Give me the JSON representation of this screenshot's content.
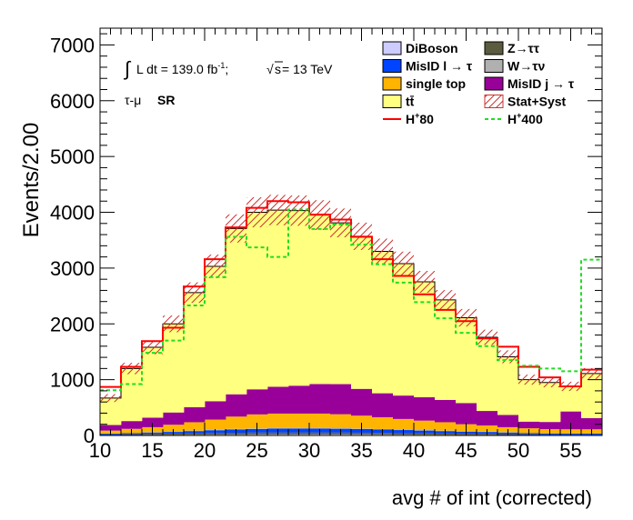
{
  "chart_data": {
    "type": "stacked-histogram",
    "xlabel": "avg # of int (corrected)",
    "ylabel": "Events/2.00",
    "xlim": [
      10,
      58
    ],
    "ylim": [
      0,
      7300
    ],
    "bin_width": 2,
    "x_ticks": [
      10,
      15,
      20,
      25,
      30,
      35,
      40,
      45,
      50,
      55
    ],
    "y_ticks": [
      0,
      1000,
      2000,
      3000,
      4000,
      5000,
      6000,
      7000
    ],
    "bins": [
      10,
      12,
      14,
      16,
      18,
      20,
      22,
      24,
      26,
      28,
      30,
      32,
      34,
      36,
      38,
      40,
      42,
      44,
      46,
      48,
      50,
      52,
      54,
      56
    ],
    "annotations": {
      "lumi_integral": "∫",
      "lumi_text": "L dt = 139.0 fb",
      "lumi_sup": "-1",
      "lumi_sep": ";",
      "sqrt_symbol": "√",
      "sqrt_s": "s",
      "energy": " = 13 TeV",
      "region_prefix": "τ-μ",
      "region_suffix": "SR"
    },
    "legend_placement": "top-right",
    "legend": [
      {
        "key": "diboson",
        "label": "DiBoson",
        "style": "box",
        "color": "#ccccff"
      },
      {
        "key": "ztautau",
        "label": "Z→ττ",
        "style": "box",
        "color": "#5b5b40"
      },
      {
        "key": "misid_l",
        "label": "MisID l → τ",
        "style": "box",
        "color": "#0044ff"
      },
      {
        "key": "wtaunu",
        "label": "W→τν",
        "style": "box",
        "color": "#b0b0b0"
      },
      {
        "key": "single_top",
        "label": "single top",
        "style": "box",
        "color": "#ffb400"
      },
      {
        "key": "misid_j",
        "label": "MisID j → τ",
        "style": "box",
        "color": "#990099"
      },
      {
        "key": "ttbar",
        "label": "tt̄",
        "style": "box",
        "color": "#ffff80"
      },
      {
        "key": "uncert",
        "label": "Stat+Syst",
        "style": "hatch",
        "color": "#cc3333"
      },
      {
        "key": "hplus80",
        "label": "H+80",
        "label_main": "H",
        "label_sup": "+",
        "label_num": "80",
        "style": "line-solid",
        "color": "#ff0000"
      },
      {
        "key": "hplus400",
        "label": "H+400",
        "label_main": "H",
        "label_sup": "+",
        "label_num": "400",
        "style": "line-dashed",
        "color": "#22dd22"
      }
    ],
    "series": [
      {
        "name": "DiBoson",
        "color": "#ccccff",
        "values": [
          5,
          8,
          10,
          12,
          14,
          16,
          18,
          20,
          20,
          20,
          20,
          20,
          20,
          18,
          16,
          14,
          12,
          10,
          10,
          8,
          6,
          5,
          5,
          5
        ]
      },
      {
        "name": "Z→ττ",
        "color": "#5b5b40",
        "values": [
          12,
          15,
          18,
          22,
          25,
          28,
          30,
          32,
          32,
          32,
          32,
          32,
          30,
          28,
          26,
          24,
          22,
          20,
          18,
          15,
          12,
          10,
          10,
          10
        ]
      },
      {
        "name": "MisID l → τ",
        "color": "#0044ff",
        "values": [
          15,
          20,
          25,
          30,
          40,
          50,
          60,
          65,
          70,
          70,
          70,
          68,
          65,
          60,
          55,
          50,
          45,
          40,
          35,
          30,
          25,
          22,
          20,
          20
        ]
      },
      {
        "name": "W→τν",
        "color": "#b0b0b0",
        "values": [
          5,
          5,
          5,
          8,
          8,
          10,
          10,
          10,
          10,
          10,
          10,
          10,
          10,
          10,
          8,
          8,
          8,
          6,
          6,
          5,
          5,
          5,
          5,
          5
        ]
      },
      {
        "name": "single top",
        "color": "#ffb400",
        "values": [
          50,
          70,
          90,
          120,
          150,
          180,
          220,
          250,
          260,
          260,
          260,
          250,
          230,
          210,
          190,
          170,
          150,
          125,
          110,
          90,
          80,
          70,
          70,
          70
        ]
      },
      {
        "name": "MisID j → τ",
        "color": "#990099",
        "values": [
          100,
          140,
          170,
          220,
          270,
          330,
          400,
          450,
          480,
          500,
          530,
          540,
          480,
          430,
          420,
          420,
          400,
          380,
          260,
          220,
          120,
          130,
          320,
          200
        ]
      },
      {
        "name": "tt̄",
        "color": "#ffff80",
        "values": [
          483,
          942,
          1262,
          1588,
          2053,
          2416,
          2972,
          3173,
          3168,
          3138,
          3028,
          2890,
          2735,
          2544,
          2365,
          2068,
          1793,
          1529,
          1311,
          1042,
          752,
          708,
          450,
          800
        ]
      }
    ],
    "total": [
      670,
      1200,
      1580,
      2000,
      2560,
      3030,
      3710,
      4000,
      4040,
      4030,
      3950,
      3810,
      3570,
      3300,
      3080,
      2754,
      2430,
      2110,
      1760,
      1410,
      1000,
      950,
      880,
      1110
    ],
    "signal_series": [
      {
        "name": "H+80",
        "style": "solid",
        "color": "#ff0000",
        "values": [
          870,
          1230,
          1690,
          1930,
          2670,
          3160,
          3730,
          4080,
          4200,
          4180,
          3960,
          3870,
          3560,
          3160,
          2860,
          2530,
          2250,
          2050,
          1740,
          1590,
          1230,
          1040,
          880,
          1180
        ]
      },
      {
        "name": "H+400",
        "style": "dashed",
        "color": "#22dd22",
        "values": [
          810,
          920,
          1480,
          1700,
          2330,
          2840,
          3560,
          3370,
          3200,
          4050,
          3700,
          3780,
          3420,
          3070,
          2740,
          2390,
          2100,
          1840,
          1600,
          1350,
          1250,
          1200,
          1150,
          3150
        ]
      }
    ]
  }
}
